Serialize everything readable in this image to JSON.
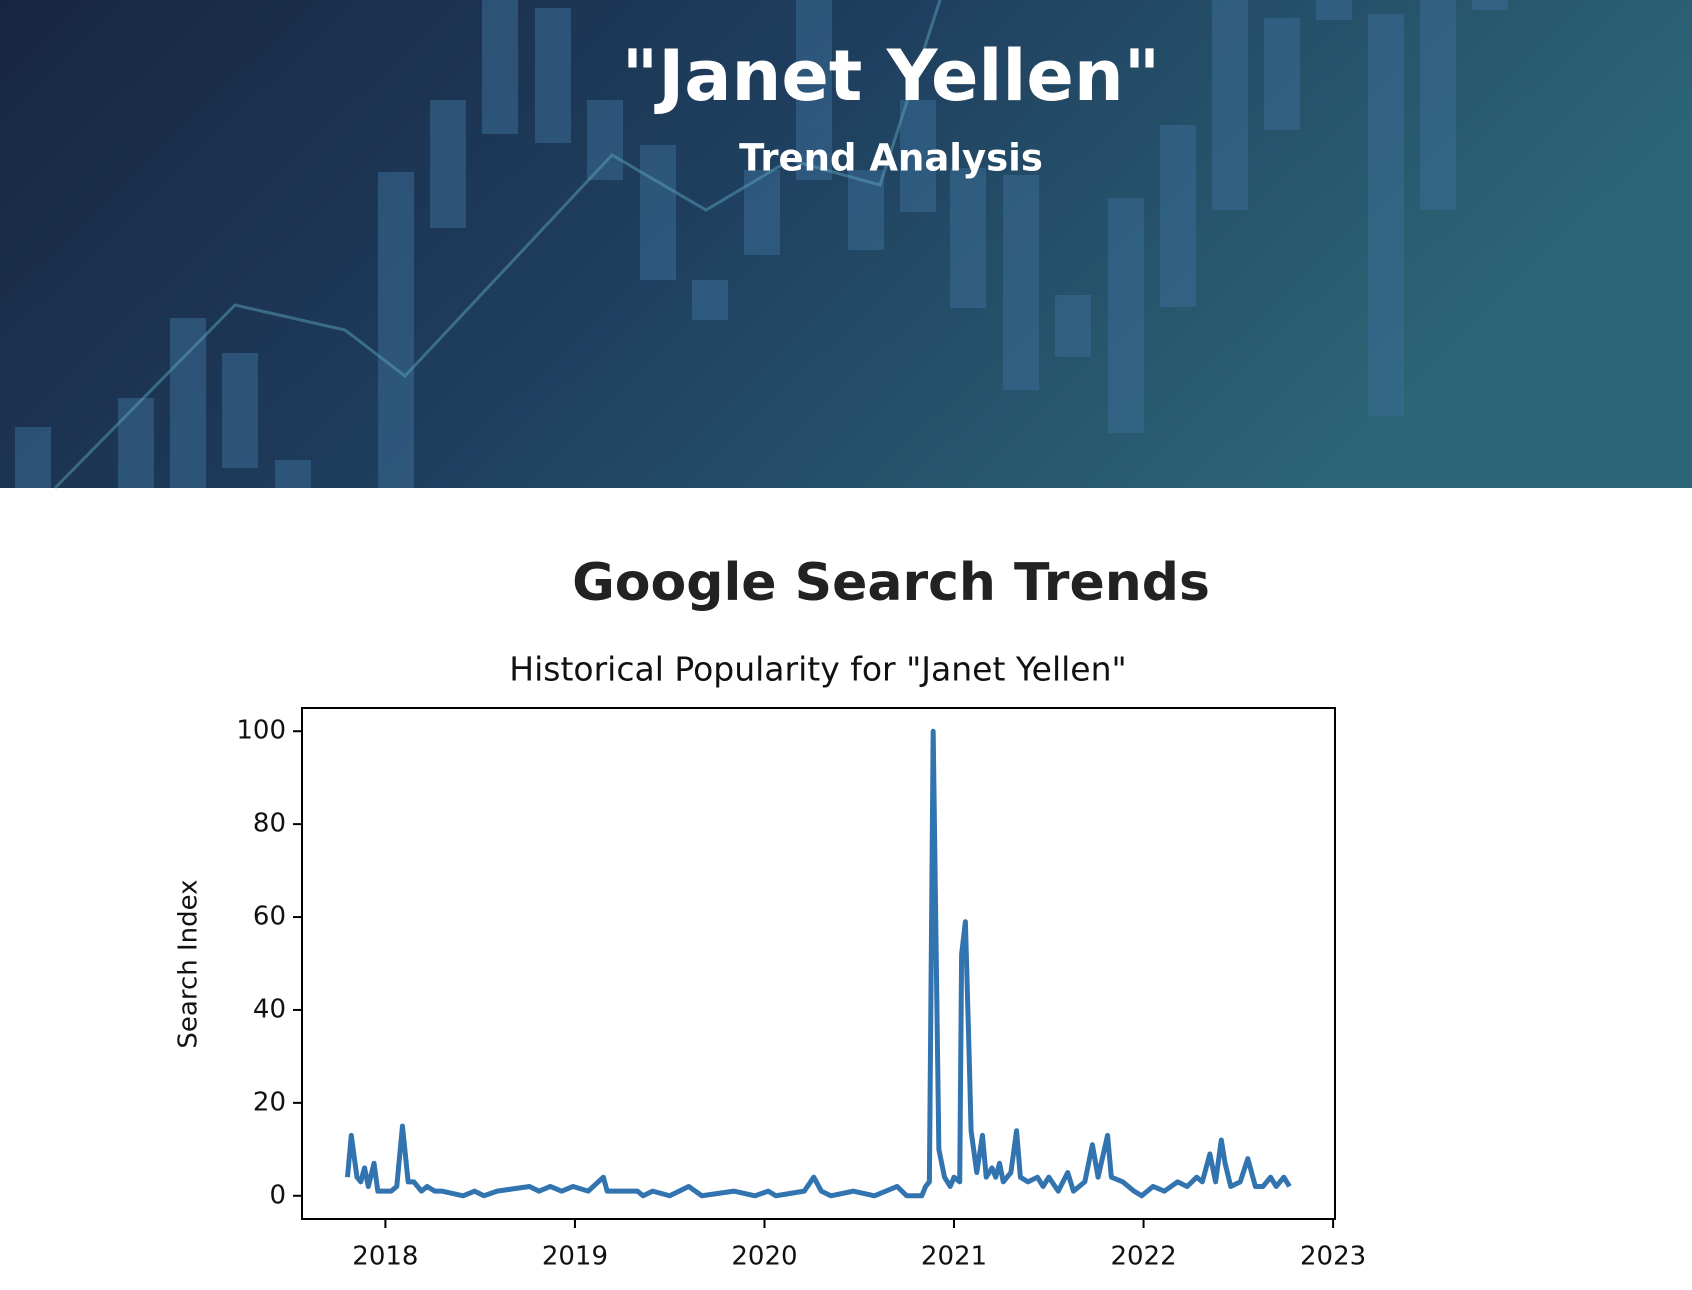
{
  "header": {
    "title": "\"Janet Yellen\"",
    "subtitle": "Trend Analysis"
  },
  "section": {
    "heading": "Google Search Trends"
  },
  "chart_data": {
    "type": "line",
    "title": "Historical Popularity for \"Janet Yellen\"",
    "y_label": "Search Index",
    "color": "#3274b0",
    "x": [
      2017.8,
      2017.82,
      2017.85,
      2017.87,
      2017.89,
      2017.91,
      2017.94,
      2017.96,
      2017.99,
      2018.03,
      2018.06,
      2018.09,
      2018.12,
      2018.15,
      2018.19,
      2018.22,
      2018.26,
      2018.3,
      2018.41,
      2018.47,
      2018.52,
      2018.59,
      2018.76,
      2018.81,
      2018.87,
      2018.93,
      2018.99,
      2019.07,
      2019.15,
      2019.17,
      2019.33,
      2019.36,
      2019.41,
      2019.5,
      2019.6,
      2019.67,
      2019.84,
      2019.95,
      2020.02,
      2020.06,
      2020.21,
      2020.26,
      2020.3,
      2020.35,
      2020.47,
      2020.58,
      2020.7,
      2020.75,
      2020.83,
      2020.85,
      2020.87,
      2020.89,
      2020.92,
      2020.95,
      2020.98,
      2021.0,
      2021.03,
      2021.04,
      2021.06,
      2021.08,
      2021.09,
      2021.12,
      2021.15,
      2021.17,
      2021.2,
      2021.22,
      2021.24,
      2021.26,
      2021.3,
      2021.33,
      2021.35,
      2021.39,
      2021.44,
      2021.47,
      2021.5,
      2021.55,
      2021.6,
      2021.63,
      2021.69,
      2021.73,
      2021.76,
      2021.81,
      2021.83,
      2021.89,
      2021.95,
      2021.99,
      2022.05,
      2022.11,
      2022.18,
      2022.23,
      2022.28,
      2022.31,
      2022.35,
      2022.38,
      2022.41,
      2022.43,
      2022.46,
      2022.51,
      2022.55,
      2022.59,
      2022.63,
      2022.67,
      2022.7,
      2022.74,
      2022.77
    ],
    "values": [
      4,
      13,
      4,
      3,
      6,
      2,
      7,
      1,
      1,
      1,
      2,
      15,
      3,
      3,
      1,
      2,
      1,
      1,
      0,
      1,
      0,
      1,
      2,
      1,
      2,
      1,
      2,
      1,
      4,
      1,
      1,
      0,
      1,
      0,
      2,
      0,
      1,
      0,
      1,
      0,
      1,
      4,
      1,
      0,
      1,
      0,
      2,
      0,
      0,
      2,
      3,
      100,
      10,
      4,
      2,
      4,
      3,
      52,
      59,
      30,
      14,
      5,
      13,
      4,
      6,
      4,
      7,
      3,
      5,
      14,
      4,
      3,
      4,
      2,
      4,
      1,
      5,
      1,
      3,
      11,
      4,
      13,
      4,
      3,
      1,
      0,
      2,
      1,
      3,
      2,
      4,
      3,
      9,
      3,
      12,
      7,
      2,
      3,
      8,
      2,
      2,
      4,
      2,
      4,
      2
    ],
    "xlim": [
      2017.56,
      2023.01
    ],
    "xticks": [
      2018,
      2019,
      2020,
      2021,
      2022,
      2023
    ],
    "ylim": [
      -5,
      105
    ],
    "yticks": [
      0,
      20,
      40,
      60,
      80,
      100
    ]
  }
}
